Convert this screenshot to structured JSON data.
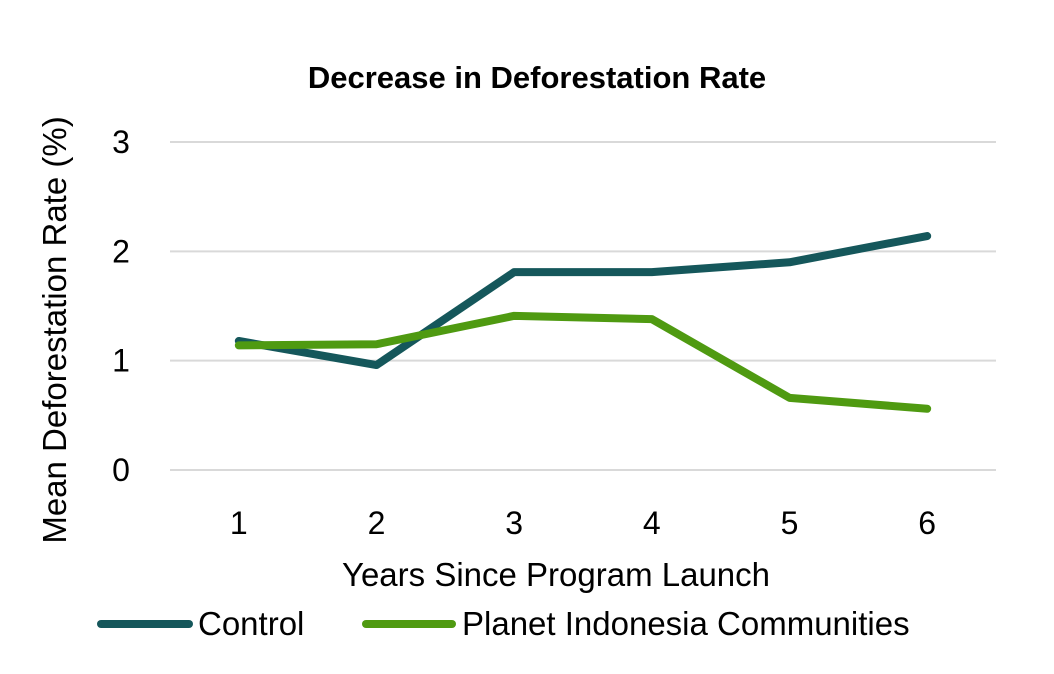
{
  "chart_data": {
    "type": "line",
    "title": "Decrease in Deforestation Rate",
    "xlabel": "Years Since Program Launch",
    "ylabel": "Mean Deforestation Rate (%)",
    "x": [
      1,
      2,
      3,
      4,
      5,
      6
    ],
    "x_tick_labels": [
      "1",
      "2",
      "3",
      "4",
      "5",
      "6"
    ],
    "y_ticks": [
      0,
      1,
      2,
      3
    ],
    "y_tick_labels": [
      "0",
      "1",
      "2",
      "3"
    ],
    "ylim": [
      0,
      3
    ],
    "grid": true,
    "legend_position": "bottom",
    "series": [
      {
        "name": "Control",
        "values": [
          1.18,
          0.96,
          1.81,
          1.81,
          1.9,
          2.14
        ],
        "color": "#15575B"
      },
      {
        "name": "Planet Indonesia Communities",
        "values": [
          1.14,
          1.15,
          1.41,
          1.38,
          0.66,
          0.56
        ],
        "color": "#4F9A11"
      }
    ]
  }
}
